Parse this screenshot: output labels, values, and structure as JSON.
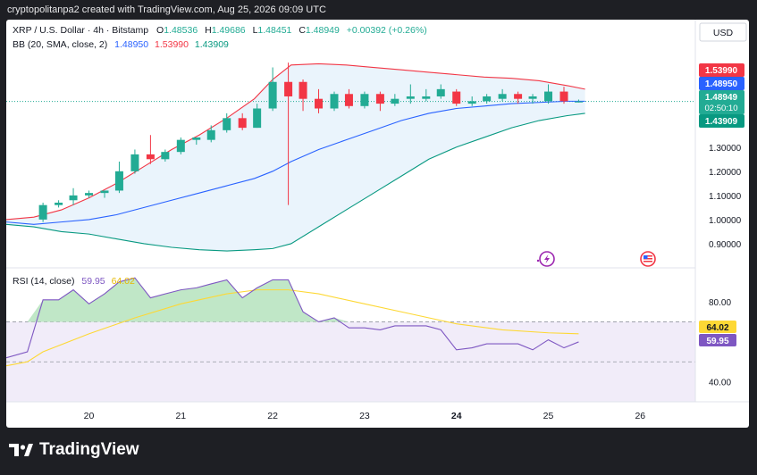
{
  "header": {
    "attribution": "cryptopolitanpa2 created with TradingView.com, Aug 25, 2026 09:09 UTC"
  },
  "legend": {
    "symbol": "XRP / U.S. Dollar · 4h · Bitstamp",
    "o_label": "O",
    "o_value": "1.48536",
    "h_label": "H",
    "h_value": "1.49686",
    "l_label": "L",
    "l_value": "1.48451",
    "c_label": "C",
    "c_value": "1.48949",
    "change": "+0.00392 (+0.26%)",
    "bb_label": "BB (20, SMA, close, 2)",
    "bb_mid": "1.48950",
    "bb_upper": "1.53990",
    "bb_lower": "1.43909",
    "rsi_label": "RSI (14, close)",
    "rsi_value": "59.95",
    "rsi_ma": "64.02"
  },
  "currency_button": "USD",
  "price_badges": {
    "upper": "1.53990",
    "mid": "1.48950",
    "last": "1.48949",
    "countdown": "02:50:10",
    "lower": "1.43909"
  },
  "rsi_badges": {
    "ma": "64.02",
    "rsi": "59.95"
  },
  "footer": {
    "brand": "TradingView"
  },
  "colors": {
    "up": "#22ab94",
    "down": "#f23645",
    "bb_mid": "#2962ff",
    "bb_upper": "#f23645",
    "bb_lower": "#089981",
    "bb_fill": "#eaf4fc",
    "rsi_line": "#7e57c2",
    "rsi_ma": "#fdd835",
    "rsi_band": "#f1ecf9",
    "rsi_over_fill": "#b9e4c1"
  },
  "icons": {
    "flash": "flash-icon",
    "flag": "us-flag-icon",
    "logo": "tradingview-logo-icon"
  },
  "chart_data": [
    {
      "type": "candlestick",
      "title": "XRP / U.S. Dollar · 4h · Bitstamp",
      "xlabel": "",
      "ylabel": "",
      "x_ticks": [
        "20",
        "21",
        "22",
        "23",
        "24",
        "25",
        "26"
      ],
      "y_ticks": [
        0.9,
        1.0,
        1.1,
        1.2,
        1.3
      ],
      "y_tick_labels": [
        "0.90000",
        "1.00000",
        "1.10000",
        "1.20000",
        "1.30000"
      ],
      "ylim": [
        0.8,
        1.68
      ],
      "x_range": [
        19.1,
        26.6
      ],
      "candles": [
        {
          "x": 19.5,
          "o": 1.0,
          "h": 1.07,
          "l": 0.99,
          "c": 1.06
        },
        {
          "x": 19.67,
          "o": 1.06,
          "h": 1.08,
          "l": 1.05,
          "c": 1.07
        },
        {
          "x": 19.83,
          "o": 1.08,
          "h": 1.13,
          "l": 1.06,
          "c": 1.1
        },
        {
          "x": 20.0,
          "o": 1.1,
          "h": 1.12,
          "l": 1.09,
          "c": 1.11
        },
        {
          "x": 20.17,
          "o": 1.11,
          "h": 1.12,
          "l": 1.09,
          "c": 1.12
        },
        {
          "x": 20.33,
          "o": 1.12,
          "h": 1.24,
          "l": 1.11,
          "c": 1.2
        },
        {
          "x": 20.5,
          "o": 1.2,
          "h": 1.29,
          "l": 1.19,
          "c": 1.27
        },
        {
          "x": 20.67,
          "o": 1.27,
          "h": 1.35,
          "l": 1.23,
          "c": 1.25
        },
        {
          "x": 20.83,
          "o": 1.25,
          "h": 1.29,
          "l": 1.24,
          "c": 1.28
        },
        {
          "x": 21.0,
          "o": 1.28,
          "h": 1.34,
          "l": 1.27,
          "c": 1.33
        },
        {
          "x": 21.17,
          "o": 1.33,
          "h": 1.34,
          "l": 1.31,
          "c": 1.34
        },
        {
          "x": 21.33,
          "o": 1.33,
          "h": 1.39,
          "l": 1.32,
          "c": 1.37
        },
        {
          "x": 21.5,
          "o": 1.37,
          "h": 1.44,
          "l": 1.36,
          "c": 1.42
        },
        {
          "x": 21.67,
          "o": 1.42,
          "h": 1.44,
          "l": 1.37,
          "c": 1.38
        },
        {
          "x": 21.83,
          "o": 1.38,
          "h": 1.48,
          "l": 1.38,
          "c": 1.46
        },
        {
          "x": 22.0,
          "o": 1.46,
          "h": 1.63,
          "l": 1.45,
          "c": 1.57
        },
        {
          "x": 22.17,
          "o": 1.57,
          "h": 1.65,
          "l": 1.06,
          "c": 1.51
        },
        {
          "x": 22.33,
          "o": 1.57,
          "h": 1.58,
          "l": 1.45,
          "c": 1.5
        },
        {
          "x": 22.5,
          "o": 1.5,
          "h": 1.54,
          "l": 1.44,
          "c": 1.46
        },
        {
          "x": 22.67,
          "o": 1.46,
          "h": 1.53,
          "l": 1.45,
          "c": 1.52
        },
        {
          "x": 22.83,
          "o": 1.52,
          "h": 1.54,
          "l": 1.46,
          "c": 1.47
        },
        {
          "x": 23.0,
          "o": 1.47,
          "h": 1.53,
          "l": 1.46,
          "c": 1.52
        },
        {
          "x": 23.17,
          "o": 1.52,
          "h": 1.53,
          "l": 1.45,
          "c": 1.48
        },
        {
          "x": 23.33,
          "o": 1.48,
          "h": 1.52,
          "l": 1.47,
          "c": 1.5
        },
        {
          "x": 23.5,
          "o": 1.5,
          "h": 1.56,
          "l": 1.48,
          "c": 1.51
        },
        {
          "x": 23.67,
          "o": 1.5,
          "h": 1.54,
          "l": 1.49,
          "c": 1.51
        },
        {
          "x": 23.83,
          "o": 1.51,
          "h": 1.56,
          "l": 1.5,
          "c": 1.54
        },
        {
          "x": 24.0,
          "o": 1.53,
          "h": 1.54,
          "l": 1.47,
          "c": 1.48
        },
        {
          "x": 24.17,
          "o": 1.48,
          "h": 1.51,
          "l": 1.47,
          "c": 1.49
        },
        {
          "x": 24.33,
          "o": 1.49,
          "h": 1.52,
          "l": 1.48,
          "c": 1.51
        },
        {
          "x": 24.5,
          "o": 1.5,
          "h": 1.54,
          "l": 1.49,
          "c": 1.52
        },
        {
          "x": 24.67,
          "o": 1.52,
          "h": 1.53,
          "l": 1.48,
          "c": 1.5
        },
        {
          "x": 24.83,
          "o": 1.5,
          "h": 1.52,
          "l": 1.48,
          "c": 1.51
        },
        {
          "x": 25.0,
          "o": 1.49,
          "h": 1.56,
          "l": 1.48,
          "c": 1.53
        },
        {
          "x": 25.17,
          "o": 1.53,
          "h": 1.55,
          "l": 1.48,
          "c": 1.49
        },
        {
          "x": 25.33,
          "o": 1.485,
          "h": 1.497,
          "l": 1.485,
          "c": 1.489
        }
      ],
      "series": [
        {
          "name": "BB upper",
          "x": [
            19.1,
            19.4,
            19.7,
            20.0,
            20.3,
            20.6,
            20.9,
            21.2,
            21.5,
            21.8,
            22.0,
            22.2,
            22.5,
            22.8,
            23.1,
            23.4,
            23.7,
            24.0,
            24.3,
            24.6,
            24.9,
            25.2,
            25.4
          ],
          "values": [
            1.0,
            1.01,
            1.04,
            1.09,
            1.15,
            1.22,
            1.29,
            1.35,
            1.42,
            1.5,
            1.58,
            1.64,
            1.645,
            1.64,
            1.63,
            1.62,
            1.61,
            1.6,
            1.59,
            1.585,
            1.575,
            1.555,
            1.54
          ]
        },
        {
          "name": "BB basis",
          "x": [
            19.1,
            19.4,
            19.7,
            20.0,
            20.3,
            20.6,
            20.9,
            21.2,
            21.5,
            21.8,
            22.0,
            22.2,
            22.5,
            22.8,
            23.1,
            23.4,
            23.7,
            24.0,
            24.3,
            24.6,
            24.9,
            25.2,
            25.4
          ],
          "values": [
            0.99,
            0.98,
            0.99,
            1.0,
            1.02,
            1.05,
            1.08,
            1.11,
            1.14,
            1.17,
            1.2,
            1.24,
            1.29,
            1.33,
            1.37,
            1.41,
            1.44,
            1.46,
            1.47,
            1.48,
            1.485,
            1.49,
            1.49
          ]
        },
        {
          "name": "BB lower",
          "x": [
            19.1,
            19.4,
            19.7,
            20.0,
            20.3,
            20.6,
            20.9,
            21.2,
            21.5,
            21.8,
            22.0,
            22.2,
            22.5,
            22.8,
            23.1,
            23.4,
            23.7,
            24.0,
            24.3,
            24.6,
            24.9,
            25.2,
            25.4
          ],
          "values": [
            0.98,
            0.97,
            0.95,
            0.94,
            0.92,
            0.9,
            0.885,
            0.875,
            0.87,
            0.875,
            0.88,
            0.9,
            0.97,
            1.04,
            1.11,
            1.18,
            1.25,
            1.3,
            1.34,
            1.38,
            1.41,
            1.43,
            1.44
          ]
        }
      ],
      "legend_position": "top-left",
      "grid": false
    },
    {
      "type": "line",
      "title": "RSI (14, close)",
      "xlabel": "",
      "ylabel": "",
      "x_ticks": [
        "20",
        "21",
        "22",
        "23",
        "24",
        "25",
        "26"
      ],
      "y_ticks": [
        40,
        80
      ],
      "y_tick_labels": [
        "40.00",
        "80.00"
      ],
      "ylim": [
        30,
        97
      ],
      "x_range": [
        19.1,
        26.6
      ],
      "band": [
        30,
        70
      ],
      "series": [
        {
          "name": "RSI",
          "x": [
            19.1,
            19.33,
            19.5,
            19.67,
            19.83,
            20.0,
            20.17,
            20.33,
            20.5,
            20.67,
            20.83,
            21.0,
            21.17,
            21.33,
            21.5,
            21.67,
            21.83,
            22.0,
            22.17,
            22.33,
            22.5,
            22.67,
            22.83,
            23.0,
            23.17,
            23.33,
            23.5,
            23.67,
            23.83,
            24.0,
            24.17,
            24.33,
            24.5,
            24.67,
            24.83,
            25.0,
            25.17,
            25.33
          ],
          "values": [
            52,
            55,
            81,
            81,
            86,
            79,
            84,
            90,
            92,
            82,
            84,
            86,
            87,
            89,
            91,
            82,
            87,
            91,
            91,
            75,
            70,
            72,
            67,
            67,
            66,
            68,
            68,
            68,
            66,
            56,
            57,
            59,
            59,
            59,
            56,
            61,
            57,
            59.95
          ]
        },
        {
          "name": "RSI-based MA",
          "x": [
            19.1,
            19.33,
            19.5,
            20.0,
            20.5,
            21.0,
            21.5,
            21.83,
            22.17,
            22.5,
            23.0,
            23.5,
            24.0,
            24.5,
            25.0,
            25.33
          ],
          "values": [
            48,
            50,
            55,
            64,
            72,
            79,
            84,
            86,
            86,
            84,
            79,
            74,
            69,
            66,
            64.5,
            64.02
          ]
        }
      ],
      "legend_position": "top-left",
      "grid": false
    }
  ]
}
